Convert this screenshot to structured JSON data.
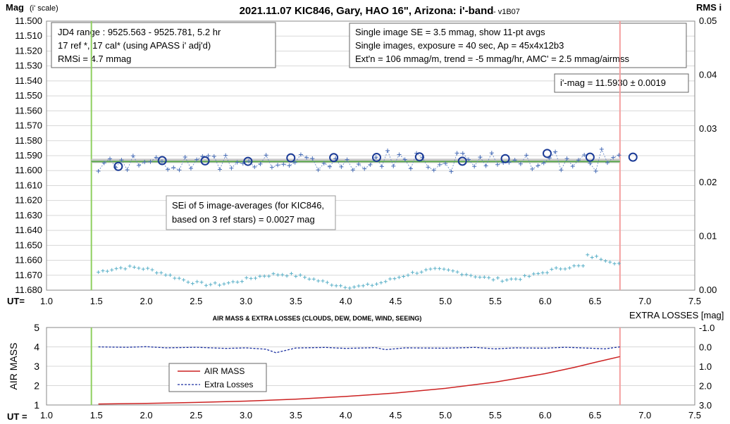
{
  "chart_data": [
    {
      "type": "scatter",
      "title": "2021.11.07 KIC846, Gary, HAO 16\", Arizona: i'-band",
      "version": "- v1B07",
      "ylabel_left": "Mag",
      "ylabel_left_sub": "(i' scale)",
      "ylabel_right": "RMS i",
      "xlabel": "UT=",
      "xlim": [
        1.0,
        7.5
      ],
      "x_ticks": [
        "1.0",
        "1.5",
        "2.0",
        "2.5",
        "3.0",
        "3.5",
        "4.0",
        "4.5",
        "5.0",
        "5.5",
        "6.0",
        "6.5",
        "7.0",
        "7.5"
      ],
      "ylim": [
        11.68,
        11.5
      ],
      "y_ticks": [
        "11.500",
        "11.510",
        "11.520",
        "11.530",
        "11.540",
        "11.550",
        "11.560",
        "11.570",
        "11.580",
        "11.590",
        "11.600",
        "11.610",
        "11.620",
        "11.630",
        "11.640",
        "11.650",
        "11.660",
        "11.670",
        "11.680"
      ],
      "y2lim": [
        0.0,
        0.05
      ],
      "y2_ticks": [
        "0.05",
        "0.04",
        "0.03",
        "0.02",
        "0.01",
        "0.00"
      ],
      "grid": true,
      "annotations": {
        "box1": [
          "JD4 range : 9525.563 - 9525.781, 5.2  hr",
          "17 ref *, 17 cal* (using APASS i' adj'd)",
          "RMSi = 4.7 mmag"
        ],
        "box2": [
          "Single image SE = 3.5 mmag, show 11-pt avgs",
          "Single images, exposure = 40 sec, Ap = 45x4x12b3",
          "Ext'n = 106 mmag/m, trend = -5 mmag/hr, AMC' = 2.5 mmag/airmss"
        ],
        "box3": [
          "i'-mag = 11.5930 ± 0.0019"
        ],
        "box4": [
          "SEi of 5 image-averages (for KIC846,",
          "based on 3 ref stars) = 0.0027 mag"
        ]
      },
      "vlines": [
        {
          "x": 1.45,
          "color": "#8fd060"
        },
        {
          "x": 6.75,
          "color": "#f4a0a0"
        }
      ],
      "fit_line": {
        "x": [
          1.45,
          6.75
        ],
        "y": [
          11.5935,
          11.5935
        ],
        "color": "#5aa84a"
      },
      "avg_points": {
        "x": [
          1.72,
          2.16,
          2.59,
          3.02,
          3.45,
          3.88,
          4.31,
          4.74,
          5.17,
          5.6,
          6.02,
          6.45,
          6.88
        ],
        "y": [
          11.5972,
          11.5933,
          11.5935,
          11.5938,
          11.5915,
          11.5913,
          11.5912,
          11.5908,
          11.5937,
          11.592,
          11.5885,
          11.591,
          11.591
        ]
      },
      "single_seed": 846,
      "rms_series": {
        "color": "#5ab0c8"
      }
    },
    {
      "type": "line",
      "title": "AIR MASS & EXTRA LOSSES (CLOUDS, DEW, DOME, WIND, SEEING)",
      "ylabel_left": "AIR MASS",
      "ylabel_right": "EXTRA LOSSES [mag]",
      "xlabel": "UT =",
      "xlim": [
        1.0,
        7.5
      ],
      "x_ticks": [
        "1.0",
        "1.5",
        "2.0",
        "2.5",
        "3.0",
        "3.5",
        "4.0",
        "4.5",
        "5.0",
        "5.5",
        "6.0",
        "6.5",
        "7.0",
        "7.5"
      ],
      "ylim": [
        1,
        5
      ],
      "y_ticks": [
        "5",
        "4",
        "3",
        "2",
        "1"
      ],
      "y2lim": [
        -1.0,
        3.0
      ],
      "y2_ticks": [
        "-1.0",
        "0.0",
        "1.0",
        "2.0",
        "3.0"
      ],
      "vlines": [
        {
          "x": 1.45,
          "color": "#8fd060"
        },
        {
          "x": 6.75,
          "color": "#f4a0a0"
        }
      ],
      "series": [
        {
          "name": "AIR MASS",
          "color": "#cc2222",
          "x": [
            1.52,
            2.0,
            2.5,
            3.0,
            3.5,
            4.0,
            4.5,
            5.0,
            5.5,
            6.0,
            6.3,
            6.5,
            6.75
          ],
          "y": [
            1.05,
            1.08,
            1.13,
            1.2,
            1.3,
            1.44,
            1.62,
            1.86,
            2.18,
            2.62,
            2.95,
            3.2,
            3.5
          ]
        },
        {
          "name": "Extra Losses",
          "color": "#1a2fa0",
          "x": [
            1.52,
            1.8,
            2.0,
            2.2,
            2.5,
            2.8,
            3.0,
            3.2,
            3.3,
            3.5,
            3.8,
            4.0,
            4.3,
            4.4,
            4.6,
            5.0,
            5.3,
            5.5,
            5.7,
            6.0,
            6.2,
            6.4,
            6.6,
            6.75
          ],
          "y": [
            0.0,
            0.02,
            -0.01,
            0.05,
            0.02,
            0.08,
            0.05,
            0.12,
            0.3,
            0.06,
            0.03,
            0.08,
            0.04,
            0.14,
            0.05,
            0.07,
            0.03,
            0.1,
            0.05,
            0.07,
            0.02,
            0.06,
            0.1,
            0.0
          ]
        }
      ]
    }
  ]
}
